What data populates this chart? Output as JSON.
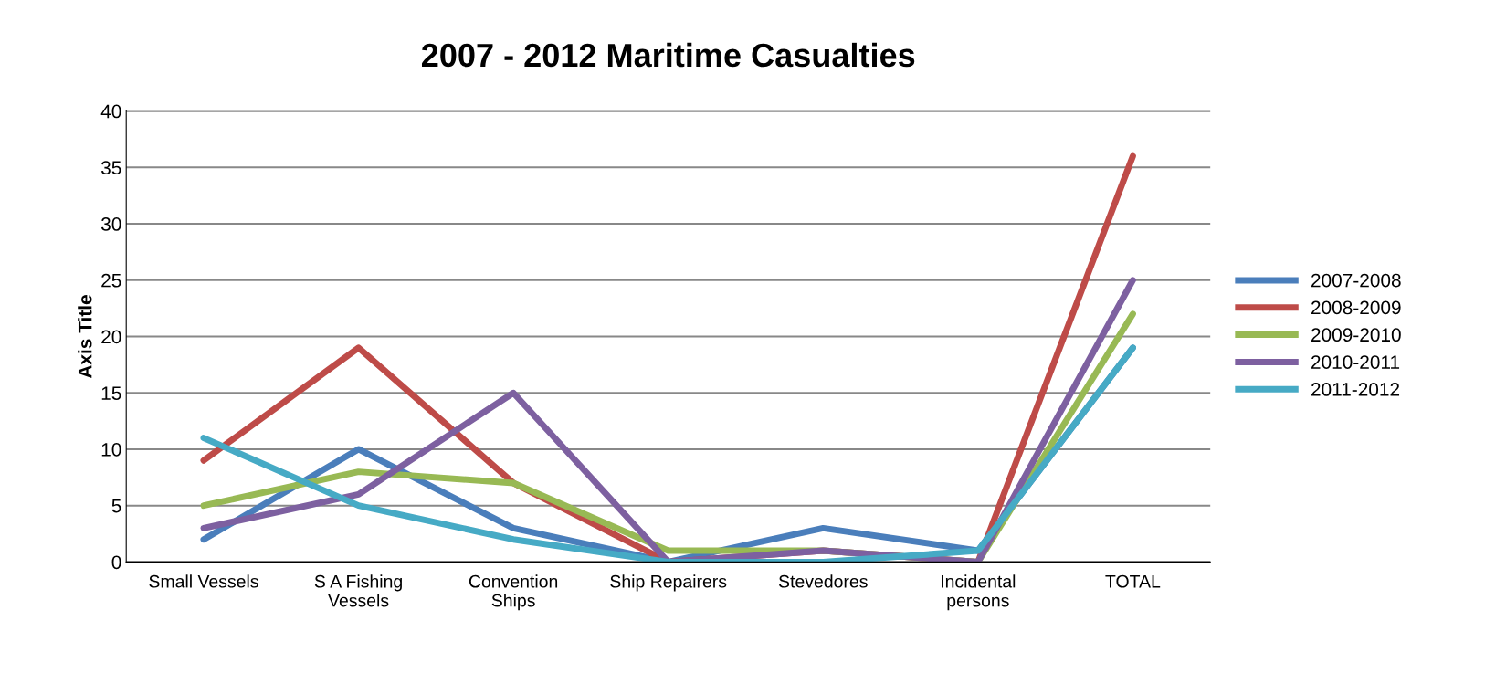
{
  "chart_data": {
    "type": "line",
    "title": "2007 - 2012 Maritime Casualties",
    "ylabel": "Axis Title",
    "categories": [
      "Small Vessels",
      "S A Fishing\nVessels",
      "Convention\nShips",
      "Ship Repairers",
      "Stevedores",
      "Incidental\npersons",
      "TOTAL"
    ],
    "series": [
      {
        "name": "2007-2008",
        "color": "#4a7ebb",
        "values": [
          2,
          10,
          3,
          0,
          3,
          1,
          19
        ]
      },
      {
        "name": "2008-2009",
        "color": "#be4b48",
        "values": [
          9,
          19,
          7,
          0,
          1,
          0,
          36
        ]
      },
      {
        "name": "2009-2010",
        "color": "#98b954",
        "values": [
          5,
          8,
          7,
          1,
          1,
          0,
          22
        ]
      },
      {
        "name": "2010-2011",
        "color": "#7d60a0",
        "values": [
          3,
          6,
          15,
          0,
          1,
          0,
          25
        ]
      },
      {
        "name": "2011-2012",
        "color": "#46aac5",
        "values": [
          11,
          5,
          2,
          0,
          0,
          1,
          19
        ]
      }
    ],
    "ylim": [
      0,
      40
    ],
    "yticks": [
      0,
      5,
      10,
      15,
      20,
      25,
      30,
      35,
      40
    ],
    "grid": "y",
    "legend": "right",
    "marker": "none",
    "line_style": "solid"
  }
}
